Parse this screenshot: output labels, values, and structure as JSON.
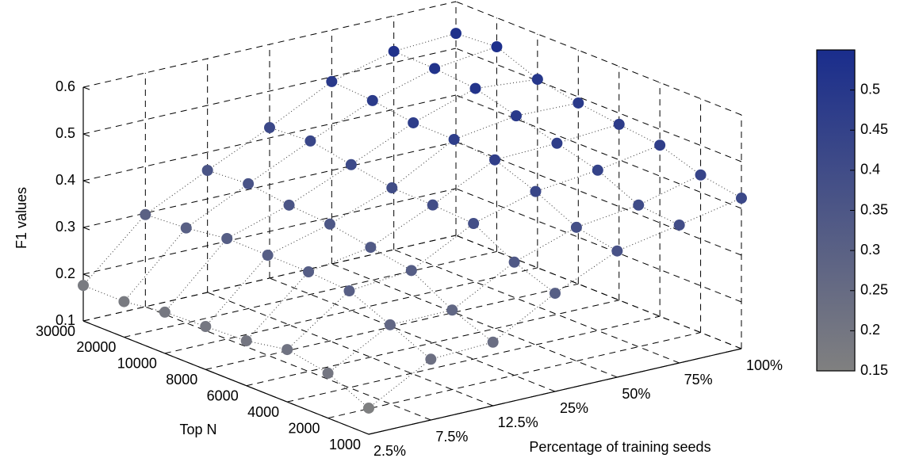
{
  "chart_data": {
    "type": "scatter3d",
    "x_label": "Percentage of training seeds",
    "y_label": "Top N",
    "z_label": "F1 values",
    "x_categories": [
      "2.5%",
      "7.5%",
      "12.5%",
      "25%",
      "50%",
      "75%",
      "100%"
    ],
    "y_categories": [
      "1000",
      "2000",
      "4000",
      "6000",
      "8000",
      "10000",
      "20000",
      "30000"
    ],
    "values": [
      [
        0.156,
        0.196,
        0.212,
        0.196,
        0.192,
        0.188,
        0.176,
        0.176
      ],
      [
        0.23,
        0.269,
        0.307,
        0.313,
        0.314,
        0.315,
        0.303,
        0.297
      ],
      [
        0.236,
        0.27,
        0.32,
        0.335,
        0.35,
        0.356,
        0.367,
        0.361
      ],
      [
        0.31,
        0.342,
        0.39,
        0.395,
        0.397,
        0.412,
        0.428,
        0.422
      ],
      [
        0.37,
        0.386,
        0.428,
        0.461,
        0.47,
        0.471,
        0.484,
        0.49
      ],
      [
        0.395,
        0.403,
        0.443,
        0.466,
        0.49,
        0.514,
        0.522,
        0.524
      ],
      [
        0.422,
        0.437,
        0.466,
        0.476,
        0.487,
        0.503,
        0.538,
        0.532
      ]
    ],
    "zlim": [
      0.1,
      0.6
    ],
    "zticks": [
      0.1,
      0.2,
      0.3,
      0.4,
      0.5,
      0.6
    ],
    "clim": [
      0.15,
      0.55
    ],
    "cticks": [
      0.15,
      0.2,
      0.25,
      0.3,
      0.35,
      0.4,
      0.45,
      0.5
    ],
    "colormap": [
      "#808080",
      "#1a2d8c"
    ],
    "grid": true
  }
}
